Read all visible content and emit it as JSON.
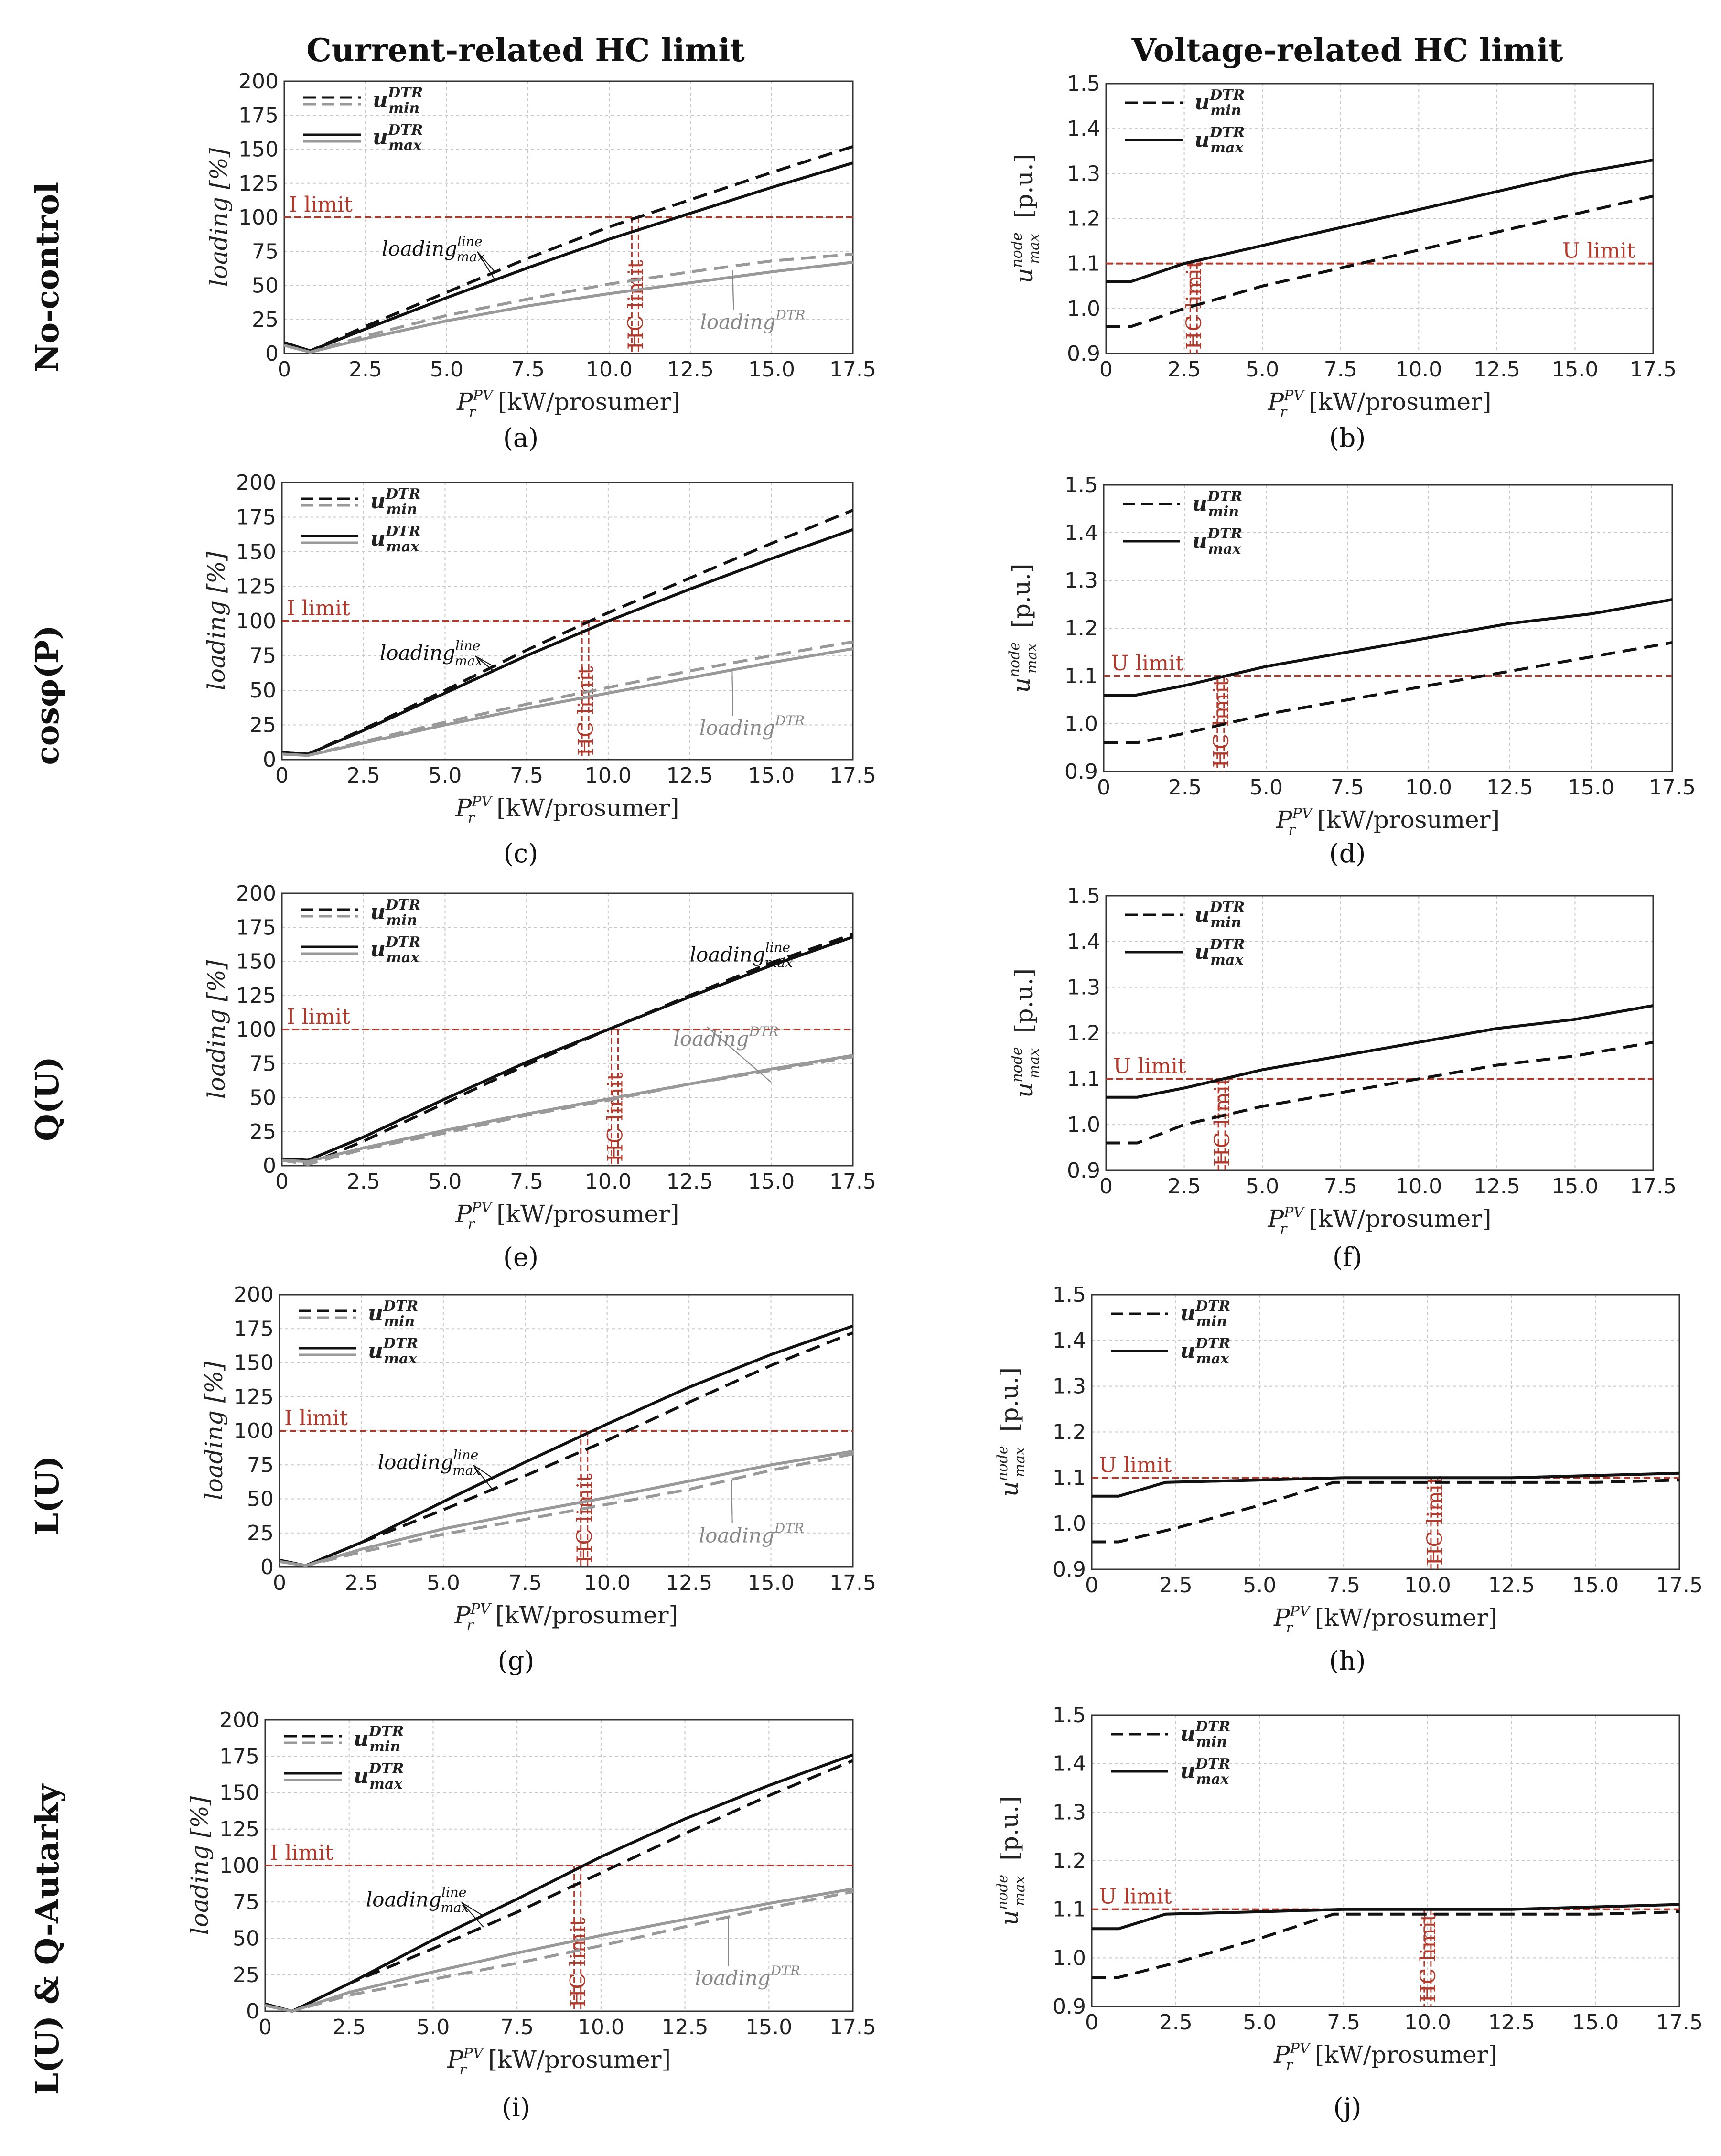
{
  "column_titles": [
    "Current-related HC limit",
    "Voltage-related HC limit"
  ],
  "row_titles": [
    "No-control",
    "cosφ(P)",
    "Q(U)",
    "L(U)",
    "L(U) & Q-Autarky"
  ],
  "colors": {
    "limit": "#b0392b",
    "black": "#111111",
    "gray": "#999999"
  },
  "labels": {
    "loading_axis": "loading [%]",
    "voltage_axis_main": "u",
    "voltage_axis_sup": "node",
    "voltage_axis_sub": "max",
    "voltage_axis_unit": "[p.u.]",
    "x_axis_main": "P",
    "x_axis_sup": "PV",
    "x_axis_sub": "r",
    "x_axis_unit": "[kW/prosumer]",
    "legend_main": "u",
    "legend_sup": "DTR",
    "legend_min": "min",
    "legend_max": "max",
    "i_limit": "I limit",
    "u_limit": "U limit",
    "hc_limit": "HC limit",
    "loading_line_main": "loading",
    "loading_line_sup": "line",
    "loading_line_sub": "max",
    "loading_dtr_main": "loading",
    "loading_dtr_sup": "DTR"
  },
  "chart_data": [
    {
      "id": "a",
      "caption": "(a)",
      "type": "line",
      "xlim": [
        0,
        17.5
      ],
      "ylim": [
        0,
        200
      ],
      "xticks": [
        "0",
        "2.5",
        "5.0",
        "7.5",
        "10.0",
        "12.5",
        "15.0",
        "17.5"
      ],
      "yticks": [
        "0",
        "25",
        "50",
        "75",
        "100",
        "125",
        "150",
        "175",
        "200"
      ],
      "limit": 100,
      "limit_label": "I limit",
      "hc": 10.8,
      "series": [
        {
          "name": "loading line u_min",
          "x": [
            0,
            0.8,
            2.5,
            5,
            7.5,
            10,
            12.5,
            15,
            17.5
          ],
          "y": [
            8,
            2,
            20,
            45,
            70,
            93,
            113,
            133,
            152
          ]
        },
        {
          "name": "loading line u_max",
          "x": [
            0,
            0.8,
            2.5,
            5,
            7.5,
            10,
            12.5,
            15,
            17.5
          ],
          "y": [
            8,
            2,
            18,
            41,
            63,
            84,
            103,
            122,
            140
          ]
        },
        {
          "name": "loading DTR u_min",
          "x": [
            0,
            0.8,
            2.5,
            5,
            7.5,
            10,
            12.5,
            15,
            17.5
          ],
          "y": [
            6,
            1,
            13,
            28,
            40,
            51,
            60,
            68,
            73
          ]
        },
        {
          "name": "loading DTR u_max",
          "x": [
            0,
            0.8,
            2.5,
            5,
            7.5,
            10,
            12.5,
            15,
            17.5
          ],
          "y": [
            6,
            1,
            11,
            24,
            35,
            44,
            52,
            60,
            67
          ]
        }
      ]
    },
    {
      "id": "b",
      "caption": "(b)",
      "type": "line",
      "xlim": [
        0,
        17.5
      ],
      "ylim": [
        0.9,
        1.5
      ],
      "xticks": [
        "0",
        "2.5",
        "5.0",
        "7.5",
        "10.0",
        "12.5",
        "15.0",
        "17.5"
      ],
      "yticks": [
        "0.9",
        "1.0",
        "1.1",
        "1.2",
        "1.3",
        "1.4",
        "1.5"
      ],
      "limit": 1.1,
      "limit_label": "U limit",
      "hc": 2.8,
      "series": [
        {
          "name": "u_min",
          "x": [
            0,
            0.8,
            2.5,
            5,
            7.5,
            10,
            12.5,
            15,
            17.5
          ],
          "y": [
            0.96,
            0.96,
            1.0,
            1.05,
            1.09,
            1.13,
            1.17,
            1.21,
            1.25
          ]
        },
        {
          "name": "u_max",
          "x": [
            0,
            0.8,
            2.5,
            5,
            7.5,
            10,
            12.5,
            15,
            17.5
          ],
          "y": [
            1.06,
            1.06,
            1.1,
            1.14,
            1.18,
            1.22,
            1.26,
            1.3,
            1.33
          ]
        }
      ]
    },
    {
      "id": "c",
      "caption": "(c)",
      "type": "line",
      "xlim": [
        0,
        17.5
      ],
      "ylim": [
        0,
        200
      ],
      "xticks": [
        "0",
        "2.5",
        "5.0",
        "7.5",
        "10.0",
        "12.5",
        "15.0",
        "17.5"
      ],
      "yticks": [
        "0",
        "25",
        "50",
        "75",
        "100",
        "125",
        "150",
        "175",
        "200"
      ],
      "limit": 100,
      "limit_label": "I limit",
      "hc": 9.3,
      "series": [
        {
          "name": "loading line u_min",
          "x": [
            0,
            0.8,
            2.5,
            5,
            7.5,
            10,
            12.5,
            15,
            17.5
          ],
          "y": [
            5,
            4,
            22,
            50,
            79,
            106,
            131,
            156,
            180
          ]
        },
        {
          "name": "loading line u_max",
          "x": [
            0,
            0.8,
            2.5,
            5,
            7.5,
            10,
            12.5,
            15,
            17.5
          ],
          "y": [
            5,
            4,
            21,
            48,
            75,
            100,
            123,
            145,
            166
          ]
        },
        {
          "name": "loading DTR u_min",
          "x": [
            0,
            0.8,
            2.5,
            5,
            7.5,
            10,
            12.5,
            15,
            17.5
          ],
          "y": [
            4,
            3,
            13,
            27,
            40,
            52,
            64,
            75,
            85
          ]
        },
        {
          "name": "loading DTR u_max",
          "x": [
            0,
            0.8,
            2.5,
            5,
            7.5,
            10,
            12.5,
            15,
            17.5
          ],
          "y": [
            4,
            3,
            12,
            25,
            37,
            48,
            59,
            70,
            80
          ]
        }
      ]
    },
    {
      "id": "d",
      "caption": "(d)",
      "type": "line",
      "xlim": [
        0,
        17.5
      ],
      "ylim": [
        0.9,
        1.5
      ],
      "xticks": [
        "0",
        "2.5",
        "5.0",
        "7.5",
        "10.0",
        "12.5",
        "15.0",
        "17.5"
      ],
      "yticks": [
        "0.9",
        "1.0",
        "1.1",
        "1.2",
        "1.3",
        "1.4",
        "1.5"
      ],
      "limit": 1.1,
      "limit_label": "U limit",
      "hc": 3.6,
      "series": [
        {
          "name": "u_min",
          "x": [
            0,
            1,
            2.5,
            5,
            7.5,
            10,
            12.5,
            15,
            17.5
          ],
          "y": [
            0.96,
            0.96,
            0.98,
            1.02,
            1.05,
            1.08,
            1.11,
            1.14,
            1.17
          ]
        },
        {
          "name": "u_max",
          "x": [
            0,
            1,
            2.5,
            5,
            7.5,
            10,
            12.5,
            15,
            17.5
          ],
          "y": [
            1.06,
            1.06,
            1.08,
            1.12,
            1.15,
            1.18,
            1.21,
            1.23,
            1.26
          ]
        }
      ]
    },
    {
      "id": "e",
      "caption": "(e)",
      "type": "line",
      "xlim": [
        0,
        17.5
      ],
      "ylim": [
        0,
        200
      ],
      "xticks": [
        "0",
        "2.5",
        "5.0",
        "7.5",
        "10.0",
        "12.5",
        "15.0",
        "17.5"
      ],
      "yticks": [
        "0",
        "25",
        "50",
        "75",
        "100",
        "125",
        "150",
        "175",
        "200"
      ],
      "limit": 100,
      "limit_label": "I limit",
      "hc": 10.2,
      "series": [
        {
          "name": "loading line u_min",
          "x": [
            0,
            0.8,
            2.5,
            5,
            7.5,
            10,
            12.5,
            15,
            17.5
          ],
          "y": [
            5,
            1,
            18,
            46,
            74,
            100,
            125,
            149,
            170
          ]
        },
        {
          "name": "loading line u_max",
          "x": [
            0,
            0.8,
            2.5,
            5,
            7.5,
            10,
            12.5,
            15,
            17.5
          ],
          "y": [
            5,
            4,
            21,
            49,
            76,
            100,
            124,
            147,
            168
          ]
        },
        {
          "name": "loading DTR u_min",
          "x": [
            0,
            0.8,
            2.5,
            5,
            7.5,
            10,
            12.5,
            15,
            17.5
          ],
          "y": [
            4,
            1,
            12,
            24,
            37,
            48,
            60,
            70,
            80
          ]
        },
        {
          "name": "loading DTR u_max",
          "x": [
            0,
            0.8,
            2.5,
            5,
            7.5,
            10,
            12.5,
            15,
            17.5
          ],
          "y": [
            4,
            3,
            13,
            26,
            38,
            49,
            60,
            71,
            81
          ]
        }
      ]
    },
    {
      "id": "f",
      "caption": "(f)",
      "type": "line",
      "xlim": [
        0,
        17.5
      ],
      "ylim": [
        0.9,
        1.5
      ],
      "xticks": [
        "0",
        "2.5",
        "5.0",
        "7.5",
        "10.0",
        "12.5",
        "15.0",
        "17.5"
      ],
      "yticks": [
        "0.9",
        "1.0",
        "1.1",
        "1.2",
        "1.3",
        "1.4",
        "1.5"
      ],
      "limit": 1.1,
      "limit_label": "U limit",
      "hc": 3.7,
      "series": [
        {
          "name": "u_min",
          "x": [
            0,
            1,
            2.5,
            5,
            7.5,
            10,
            12.5,
            15,
            17.5
          ],
          "y": [
            0.96,
            0.96,
            1.0,
            1.04,
            1.07,
            1.1,
            1.13,
            1.15,
            1.18
          ]
        },
        {
          "name": "u_max",
          "x": [
            0,
            1,
            2.5,
            5,
            7.5,
            10,
            12.5,
            15,
            17.5
          ],
          "y": [
            1.06,
            1.06,
            1.08,
            1.12,
            1.15,
            1.18,
            1.21,
            1.23,
            1.26
          ]
        }
      ]
    },
    {
      "id": "g",
      "caption": "(g)",
      "type": "line",
      "xlim": [
        0,
        17.5
      ],
      "ylim": [
        0,
        200
      ],
      "xticks": [
        "0",
        "2.5",
        "5.0",
        "7.5",
        "10.0",
        "12.5",
        "15.0",
        "17.5"
      ],
      "yticks": [
        "0",
        "25",
        "50",
        "75",
        "100",
        "125",
        "150",
        "175",
        "200"
      ],
      "limit": 100,
      "limit_label": "I limit",
      "hc": 9.3,
      "series": [
        {
          "name": "loading line u_min",
          "x": [
            0,
            0.8,
            2.5,
            5,
            7.5,
            10,
            12.5,
            15,
            17.5
          ],
          "y": [
            5,
            1,
            18,
            42,
            67,
            93,
            121,
            148,
            172
          ]
        },
        {
          "name": "loading line u_max",
          "x": [
            0,
            0.8,
            2.5,
            5,
            7.5,
            10,
            12.5,
            15,
            17.5
          ],
          "y": [
            5,
            1,
            18,
            48,
            77,
            105,
            132,
            156,
            177
          ]
        },
        {
          "name": "loading DTR u_min",
          "x": [
            0,
            0.8,
            2.5,
            5,
            7.5,
            10,
            12.5,
            15,
            17.5
          ],
          "y": [
            4,
            1,
            11,
            24,
            35,
            46,
            57,
            71,
            83
          ]
        },
        {
          "name": "loading DTR u_max",
          "x": [
            0,
            0.8,
            2.5,
            5,
            7.5,
            10,
            12.5,
            15,
            17.5
          ],
          "y": [
            4,
            1,
            13,
            28,
            40,
            51,
            63,
            75,
            85
          ]
        }
      ]
    },
    {
      "id": "h",
      "caption": "(h)",
      "type": "line",
      "xlim": [
        0,
        17.5
      ],
      "ylim": [
        0.9,
        1.5
      ],
      "xticks": [
        "0",
        "2.5",
        "5.0",
        "7.5",
        "10.0",
        "12.5",
        "15.0",
        "17.5"
      ],
      "yticks": [
        "0.9",
        "1.0",
        "1.1",
        "1.2",
        "1.3",
        "1.4",
        "1.5"
      ],
      "limit": 1.1,
      "limit_label": "U limit",
      "hc": 10.2,
      "series": [
        {
          "name": "u_min",
          "x": [
            0,
            0.8,
            2.5,
            5,
            7.2,
            10,
            12.5,
            15,
            17.5
          ],
          "y": [
            0.96,
            0.96,
            0.99,
            1.04,
            1.09,
            1.09,
            1.09,
            1.09,
            1.095
          ]
        },
        {
          "name": "u_max",
          "x": [
            0,
            0.8,
            2.2,
            5,
            7.5,
            10,
            12.5,
            15,
            17.5
          ],
          "y": [
            1.06,
            1.06,
            1.09,
            1.095,
            1.1,
            1.1,
            1.1,
            1.105,
            1.11
          ]
        }
      ]
    },
    {
      "id": "i",
      "caption": "(i)",
      "type": "line",
      "xlim": [
        0,
        17.5
      ],
      "ylim": [
        0,
        200
      ],
      "xticks": [
        "0",
        "2.5",
        "5.0",
        "7.5",
        "10.0",
        "12.5",
        "15.0",
        "17.5"
      ],
      "yticks": [
        "0",
        "25",
        "50",
        "75",
        "100",
        "125",
        "150",
        "175",
        "200"
      ],
      "limit": 100,
      "limit_label": "I limit",
      "hc": 9.3,
      "series": [
        {
          "name": "loading line u_min",
          "x": [
            0,
            0.8,
            2.5,
            5,
            7.5,
            10,
            12.5,
            15,
            17.5
          ],
          "y": [
            5,
            0,
            19,
            43,
            68,
            95,
            122,
            148,
            172
          ]
        },
        {
          "name": "loading line u_max",
          "x": [
            0,
            0.8,
            2.5,
            5,
            7.5,
            10,
            12.5,
            15,
            17.5
          ],
          "y": [
            5,
            0,
            19,
            49,
            77,
            106,
            132,
            155,
            176
          ]
        },
        {
          "name": "loading DTR u_min",
          "x": [
            0,
            0.8,
            2.5,
            5,
            7.5,
            10,
            12.5,
            15,
            17.5
          ],
          "y": [
            4,
            0,
            11,
            22,
            33,
            45,
            58,
            71,
            82
          ]
        },
        {
          "name": "loading DTR u_max",
          "x": [
            0,
            0.8,
            2.5,
            5,
            7.5,
            10,
            12.5,
            15,
            17.5
          ],
          "y": [
            4,
            0,
            13,
            27,
            40,
            52,
            63,
            74,
            84
          ]
        }
      ]
    },
    {
      "id": "j",
      "caption": "(j)",
      "type": "line",
      "xlim": [
        0,
        17.5
      ],
      "ylim": [
        0.9,
        1.5
      ],
      "xticks": [
        "0",
        "2.5",
        "5.0",
        "7.5",
        "10.0",
        "12.5",
        "15.0",
        "17.5"
      ],
      "yticks": [
        "0.9",
        "1.0",
        "1.1",
        "1.2",
        "1.3",
        "1.4",
        "1.5"
      ],
      "limit": 1.1,
      "limit_label": "U limit",
      "hc": 10.0,
      "series": [
        {
          "name": "u_min",
          "x": [
            0,
            0.8,
            2.5,
            5,
            7.2,
            10,
            12.5,
            15,
            17.5
          ],
          "y": [
            0.96,
            0.96,
            0.99,
            1.04,
            1.09,
            1.09,
            1.09,
            1.09,
            1.095
          ]
        },
        {
          "name": "u_max",
          "x": [
            0,
            0.8,
            2.2,
            5,
            7.5,
            10,
            12.5,
            15,
            17.5
          ],
          "y": [
            1.06,
            1.06,
            1.09,
            1.095,
            1.1,
            1.1,
            1.1,
            1.105,
            1.11
          ]
        }
      ]
    }
  ]
}
